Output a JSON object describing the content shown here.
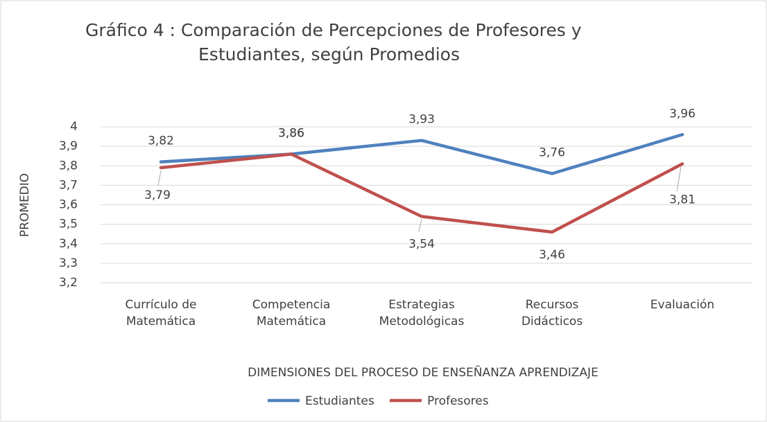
{
  "chart_data": {
    "type": "line",
    "title": [
      "Gráfico 4 : Comparación de Percepciones de Profesores y",
      "Estudiantes, según Promedios"
    ],
    "xlabel": "DIMENSIONES DEL PROCESO DE ENSEÑANZA APRENDIZAJE",
    "ylabel": "PROMEDIO",
    "categories": [
      [
        "Currículo de",
        "Matemática"
      ],
      [
        "Competencia",
        "Matemática"
      ],
      [
        "Estrategias",
        "Metodológicas"
      ],
      [
        "Recursos",
        "Didácticos"
      ],
      [
        "Evaluación"
      ]
    ],
    "series": [
      {
        "name": "Estudiantes",
        "color": "#4f81bd",
        "values": [
          3.82,
          3.86,
          3.93,
          3.76,
          3.96
        ],
        "value_labels": [
          "3,82",
          "3,86",
          "3,93",
          "3,76",
          "3,96"
        ]
      },
      {
        "name": "Profesores",
        "color": "#c0504d",
        "values": [
          3.79,
          3.86,
          3.54,
          3.46,
          3.81
        ],
        "value_labels": [
          "3,79",
          "3,86",
          "3,54",
          "3,46",
          "3,81"
        ]
      }
    ],
    "ylim": [
      3.2,
      4
    ],
    "yticks": [
      {
        "value": 3.2,
        "label": "3,2"
      },
      {
        "value": 3.3,
        "label": "3,3"
      },
      {
        "value": 3.4,
        "label": "3,4"
      },
      {
        "value": 3.5,
        "label": "3,5"
      },
      {
        "value": 3.6,
        "label": "3,6"
      },
      {
        "value": 3.7,
        "label": "3,7"
      },
      {
        "value": 3.8,
        "label": "3,8"
      },
      {
        "value": 3.9,
        "label": "3,9"
      },
      4
    ],
    "grid": true,
    "legend": "bottom"
  }
}
